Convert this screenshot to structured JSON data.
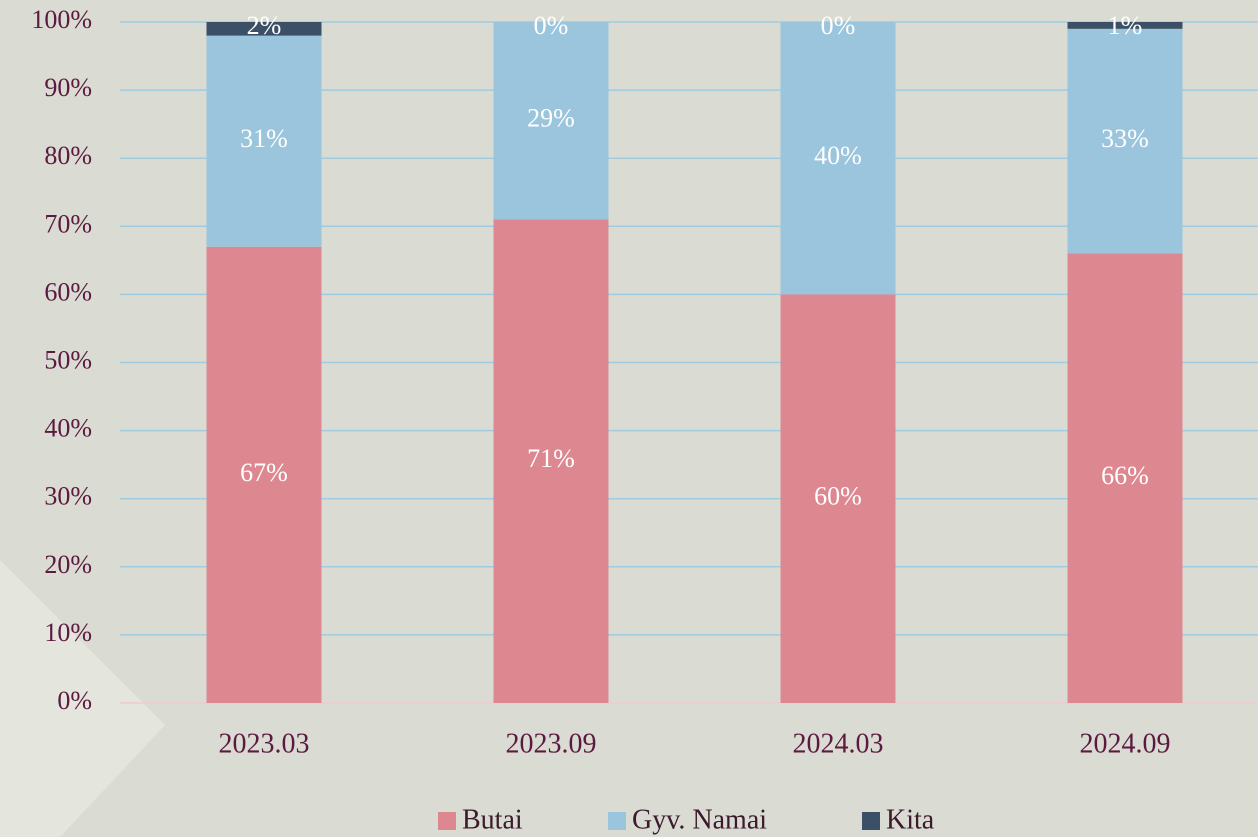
{
  "chart_data": {
    "type": "stacked_bar",
    "categories": [
      "2023.03",
      "2023.09",
      "2024.03",
      "2024.09"
    ],
    "series": [
      {
        "name": "Butai",
        "color": "#dd8891",
        "values": [
          67,
          71,
          60,
          66
        ],
        "value_labels": [
          "67%",
          "71%",
          "60%",
          "66%"
        ]
      },
      {
        "name": "Gyv. Namai",
        "color": "#9ac5dd",
        "values": [
          31,
          29,
          40,
          33
        ],
        "value_labels": [
          "31%",
          "29%",
          "40%",
          "33%"
        ]
      },
      {
        "name": "Kita",
        "color": "#3b4f66",
        "values": [
          2,
          0,
          0,
          1
        ],
        "value_labels": [
          "2%",
          "0%",
          "0%",
          "1%"
        ]
      }
    ],
    "ylim": [
      0,
      100
    ],
    "yticks": [
      {
        "value": 0,
        "label": "0%"
      },
      {
        "value": 10,
        "label": "10%"
      },
      {
        "value": 20,
        "label": "20%"
      },
      {
        "value": 30,
        "label": "30%"
      },
      {
        "value": 40,
        "label": "40%"
      },
      {
        "value": 50,
        "label": "50%"
      },
      {
        "value": 60,
        "label": "60%"
      },
      {
        "value": 70,
        "label": "70%"
      },
      {
        "value": 80,
        "label": "80%"
      },
      {
        "value": 90,
        "label": "90%"
      },
      {
        "value": 100,
        "label": "100%"
      }
    ],
    "grid": true,
    "legend": "bottom"
  }
}
